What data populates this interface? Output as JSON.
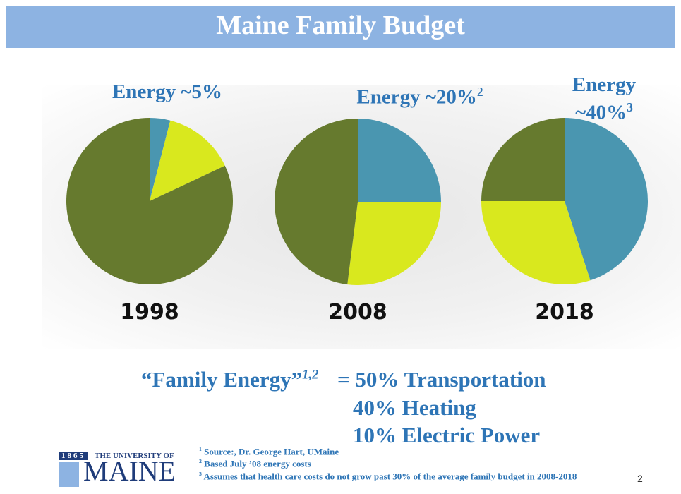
{
  "header": {
    "title": "Maine Family Budget"
  },
  "chart_data": [
    {
      "type": "pie",
      "title": "Energy ~5%",
      "label": "1998",
      "values": [
        4,
        14,
        82
      ],
      "colors": [
        "#4a96b0",
        "#d9e81e",
        "#667a2e"
      ]
    },
    {
      "type": "pie",
      "title": "Energy ~20%",
      "title_note": "2",
      "label": "2008",
      "values": [
        25,
        27,
        48
      ],
      "colors": [
        "#4a96b0",
        "#d9e81e",
        "#667a2e"
      ]
    },
    {
      "type": "pie",
      "title": "Energy ~40%",
      "title_note": "3",
      "label": "2018",
      "values": [
        45,
        30,
        25
      ],
      "colors": [
        "#4a96b0",
        "#d9e81e",
        "#667a2e"
      ]
    }
  ],
  "summary": {
    "term": "“Family Energy”",
    "term_note": "1,2",
    "lines": [
      "= 50% Transportation",
      "40% Heating",
      "10% Electric Power"
    ]
  },
  "footnotes": [
    {
      "mark": "1",
      "text": "Source:, Dr. George Hart, UMaine"
    },
    {
      "mark": "2",
      "text": "Based July ’08 energy costs"
    },
    {
      "mark": "3",
      "text": "Assumes that health care costs do not grow past 30% of the average family budget in 2008-2018"
    }
  ],
  "logo": {
    "year": "1865",
    "line1": "THE UNIVERSITY OF",
    "line2": "MAINE"
  },
  "page_number": "2"
}
